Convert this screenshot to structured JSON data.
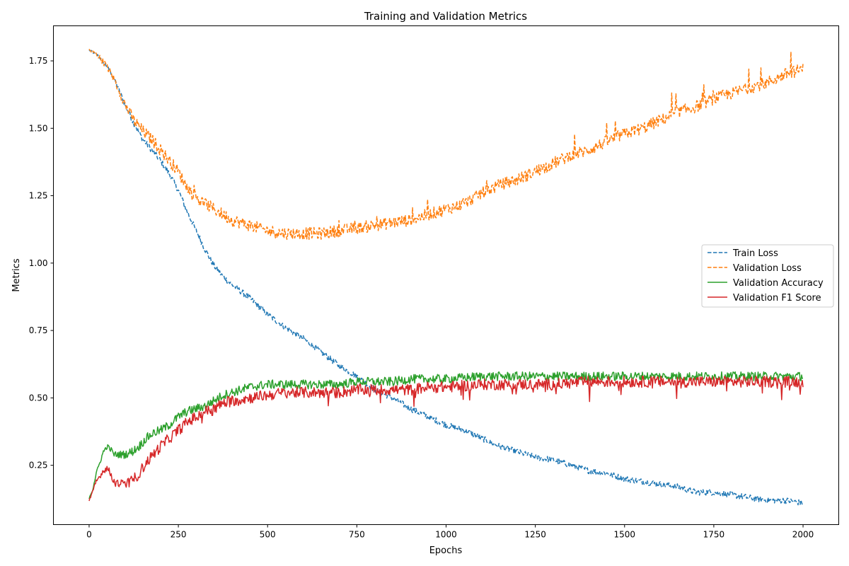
{
  "chart_data": {
    "type": "line",
    "title": "Training and Validation Metrics",
    "xlabel": "Epochs",
    "ylabel": "Metrics",
    "xlim": [
      -100,
      2100
    ],
    "ylim": [
      0.03,
      1.88
    ],
    "xticks": [
      0,
      250,
      500,
      750,
      1000,
      1250,
      1500,
      1750,
      2000
    ],
    "yticks": [
      0.25,
      0.5,
      0.75,
      1.0,
      1.25,
      1.5,
      1.75
    ],
    "xtick_labels": [
      "0",
      "250",
      "500",
      "750",
      "1000",
      "1250",
      "1500",
      "1750",
      "2000"
    ],
    "ytick_labels": [
      "0.25",
      "0.50",
      "0.75",
      "1.00",
      "1.25",
      "1.50",
      "1.75"
    ],
    "grid": false,
    "legend_position": "center-right",
    "series": [
      {
        "name": "Train Loss",
        "color": "#1f77b4",
        "dash": true,
        "x": [
          0,
          25,
          50,
          75,
          100,
          125,
          150,
          175,
          200,
          225,
          250,
          275,
          300,
          325,
          350,
          375,
          400,
          450,
          500,
          550,
          600,
          650,
          700,
          750,
          800,
          850,
          900,
          950,
          1000,
          1050,
          1100,
          1150,
          1200,
          1250,
          1300,
          1350,
          1400,
          1450,
          1500,
          1550,
          1600,
          1650,
          1700,
          1750,
          1800,
          1850,
          1900,
          1950,
          2000
        ],
        "y": [
          1.79,
          1.77,
          1.73,
          1.67,
          1.59,
          1.52,
          1.46,
          1.42,
          1.38,
          1.33,
          1.27,
          1.19,
          1.12,
          1.05,
          0.99,
          0.95,
          0.92,
          0.87,
          0.81,
          0.76,
          0.72,
          0.67,
          0.62,
          0.58,
          0.53,
          0.5,
          0.46,
          0.43,
          0.4,
          0.38,
          0.35,
          0.32,
          0.3,
          0.28,
          0.27,
          0.25,
          0.23,
          0.22,
          0.2,
          0.19,
          0.18,
          0.17,
          0.15,
          0.15,
          0.14,
          0.13,
          0.12,
          0.12,
          0.11
        ],
        "noise": 0.008,
        "spike": 0.0
      },
      {
        "name": "Validation Loss",
        "color": "#ff7f0e",
        "dash": true,
        "x": [
          0,
          25,
          50,
          75,
          100,
          125,
          150,
          175,
          200,
          225,
          250,
          275,
          300,
          325,
          350,
          375,
          400,
          450,
          500,
          550,
          600,
          650,
          700,
          750,
          800,
          850,
          900,
          950,
          1000,
          1050,
          1100,
          1150,
          1200,
          1250,
          1300,
          1350,
          1400,
          1450,
          1500,
          1550,
          1600,
          1650,
          1700,
          1750,
          1800,
          1850,
          1900,
          1950,
          2000
        ],
        "y": [
          1.79,
          1.77,
          1.73,
          1.67,
          1.59,
          1.53,
          1.49,
          1.46,
          1.42,
          1.38,
          1.34,
          1.28,
          1.24,
          1.22,
          1.2,
          1.18,
          1.16,
          1.14,
          1.12,
          1.11,
          1.11,
          1.11,
          1.12,
          1.13,
          1.14,
          1.15,
          1.16,
          1.18,
          1.2,
          1.22,
          1.26,
          1.29,
          1.31,
          1.34,
          1.37,
          1.4,
          1.42,
          1.45,
          1.48,
          1.5,
          1.53,
          1.56,
          1.58,
          1.61,
          1.63,
          1.65,
          1.67,
          1.7,
          1.72
        ],
        "noise": 0.016,
        "spike": 0.06
      },
      {
        "name": "Validation Accuracy",
        "color": "#2ca02c",
        "dash": false,
        "x": [
          0,
          10,
          20,
          30,
          40,
          50,
          60,
          70,
          80,
          100,
          120,
          140,
          160,
          180,
          200,
          225,
          250,
          275,
          300,
          325,
          350,
          375,
          400,
          450,
          500,
          550,
          600,
          650,
          700,
          750,
          800,
          850,
          900,
          950,
          1000,
          1100,
          1200,
          1300,
          1400,
          1500,
          1600,
          1700,
          1800,
          1900,
          2000
        ],
        "y": [
          0.13,
          0.16,
          0.22,
          0.26,
          0.3,
          0.32,
          0.31,
          0.29,
          0.29,
          0.29,
          0.3,
          0.32,
          0.35,
          0.37,
          0.38,
          0.4,
          0.43,
          0.45,
          0.46,
          0.47,
          0.49,
          0.51,
          0.52,
          0.54,
          0.55,
          0.55,
          0.55,
          0.55,
          0.55,
          0.56,
          0.56,
          0.56,
          0.57,
          0.57,
          0.57,
          0.58,
          0.58,
          0.58,
          0.58,
          0.58,
          0.58,
          0.58,
          0.58,
          0.58,
          0.58
        ],
        "noise": 0.012,
        "spike": 0.0
      },
      {
        "name": "Validation F1 Score",
        "color": "#d62728",
        "dash": false,
        "x": [
          0,
          10,
          20,
          30,
          40,
          50,
          60,
          70,
          80,
          100,
          120,
          140,
          160,
          180,
          200,
          225,
          250,
          275,
          300,
          325,
          350,
          375,
          400,
          450,
          500,
          550,
          600,
          650,
          700,
          750,
          800,
          850,
          900,
          950,
          1000,
          1100,
          1200,
          1300,
          1400,
          1500,
          1600,
          1700,
          1800,
          1900,
          2000
        ],
        "y": [
          0.12,
          0.15,
          0.19,
          0.21,
          0.23,
          0.24,
          0.22,
          0.19,
          0.18,
          0.18,
          0.19,
          0.22,
          0.26,
          0.29,
          0.32,
          0.35,
          0.38,
          0.41,
          0.43,
          0.45,
          0.46,
          0.48,
          0.49,
          0.5,
          0.51,
          0.52,
          0.52,
          0.52,
          0.52,
          0.53,
          0.53,
          0.53,
          0.53,
          0.54,
          0.54,
          0.55,
          0.55,
          0.55,
          0.56,
          0.56,
          0.56,
          0.56,
          0.56,
          0.56,
          0.56
        ],
        "noise": 0.015,
        "spike": 0.05
      }
    ]
  }
}
